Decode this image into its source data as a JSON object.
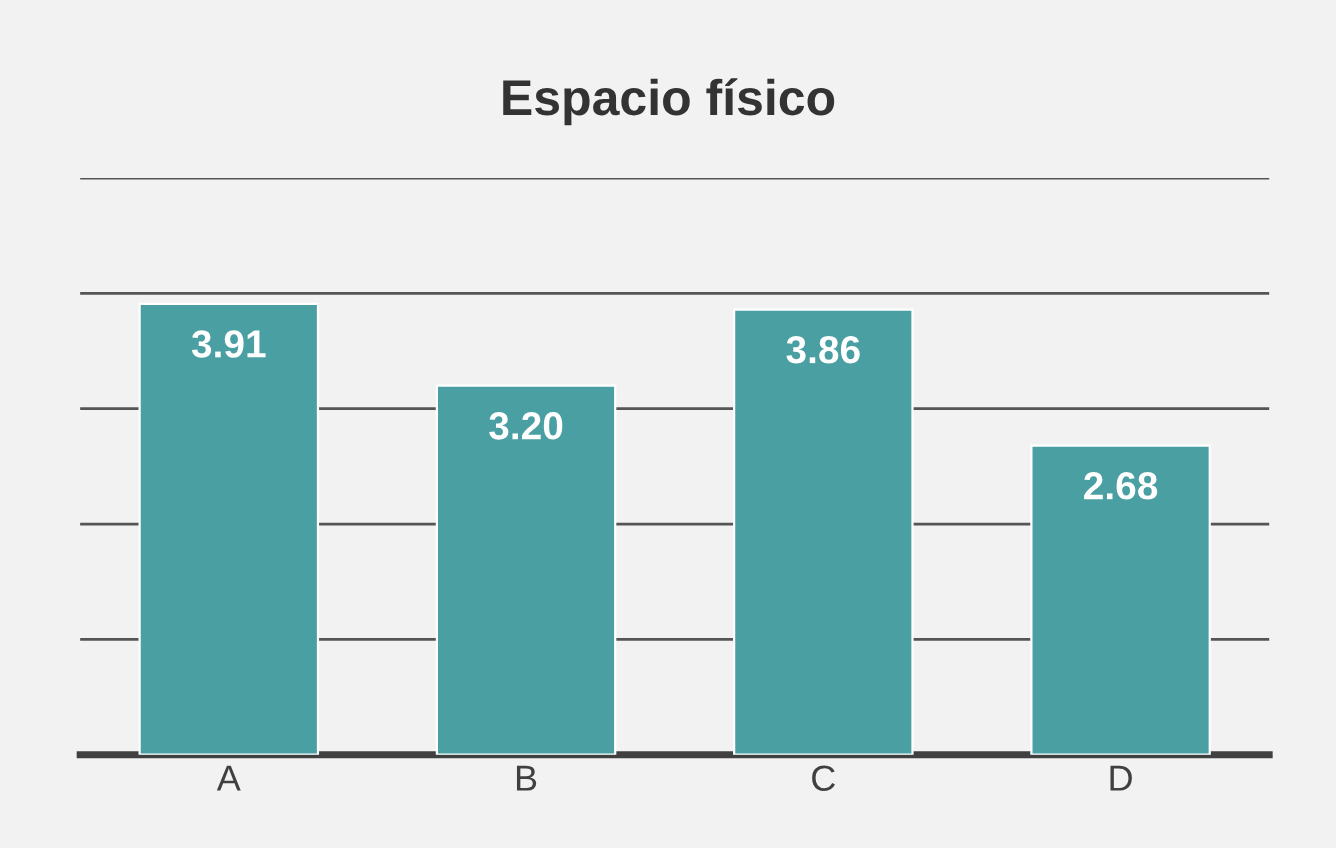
{
  "chart_data": {
    "type": "bar",
    "title": "Espacio físico",
    "categories": [
      "A",
      "B",
      "C",
      "D"
    ],
    "values": [
      3.91,
      3.2,
      3.86,
      2.68
    ],
    "value_labels": [
      "3.91",
      "3.20",
      "3.86",
      "2.68"
    ],
    "color": "#4a9fa3",
    "ylim": [
      0,
      5
    ],
    "yticks": [
      {
        "value": 0,
        "label": null
      },
      {
        "value": 1,
        "label": null
      },
      {
        "value": 2,
        "label": null
      },
      {
        "value": 3,
        "label": null
      },
      {
        "value": 4,
        "label": null
      },
      {
        "value": 5,
        "label": null
      }
    ],
    "tick_labels": "x",
    "grid": "y"
  }
}
